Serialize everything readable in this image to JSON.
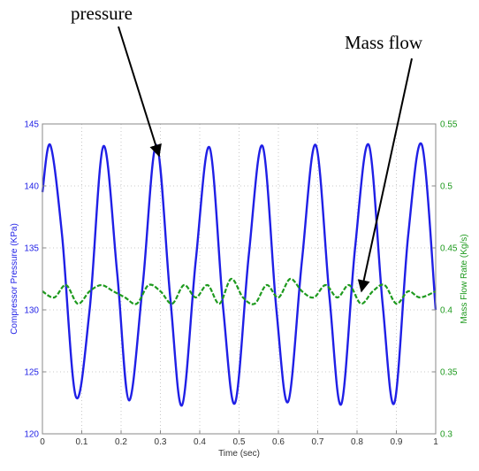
{
  "annotations": {
    "pressure_label": "pressure",
    "massflow_label": "Mass flow"
  },
  "chart_data": {
    "type": "line",
    "xlabel": "Time (sec)",
    "ylabel_left": "Compressor Pressure (KPa)",
    "ylabel_right": "Mass Flow Rate (Kg/s)",
    "xlim": [
      0,
      1
    ],
    "ylim_left": [
      120,
      145
    ],
    "ylim_right": [
      0.3,
      0.55
    ],
    "xticks": [
      "0",
      "0.1",
      "0.2",
      "0.3",
      "0.4",
      "0.5",
      "0.6",
      "0.7",
      "0.8",
      "0.9",
      "1"
    ],
    "yticks_left": [
      "120",
      "125",
      "130",
      "135",
      "140",
      "145"
    ],
    "yticks_right": [
      "0.3",
      "0.35",
      "0.4",
      "0.45",
      "0.5",
      "0.55"
    ],
    "grid": true,
    "colors": {
      "pressure": "#1f1fe6",
      "massflow": "#1e9a1e"
    },
    "series": [
      {
        "axis": "left",
        "style": "solid",
        "x": [
          0,
          0.02,
          0.05,
          0.085,
          0.12,
          0.155,
          0.19,
          0.22,
          0.255,
          0.29,
          0.325,
          0.355,
          0.39,
          0.425,
          0.46,
          0.49,
          0.525,
          0.56,
          0.595,
          0.625,
          0.66,
          0.695,
          0.73,
          0.76,
          0.795,
          0.83,
          0.865,
          0.895,
          0.93,
          0.965,
          1.0
        ],
        "y": [
          139.5,
          143.3,
          136.0,
          123.0,
          130.0,
          143.2,
          133.0,
          122.7,
          132.0,
          143.3,
          131.0,
          122.3,
          134.0,
          143.1,
          130.0,
          122.5,
          134.5,
          143.2,
          130.0,
          122.6,
          134.0,
          143.3,
          131.0,
          122.4,
          135.0,
          143.3,
          130.5,
          122.5,
          136.0,
          143.3,
          130.0
        ]
      },
      {
        "axis": "right",
        "style": "dashed",
        "x": [
          0,
          0.03,
          0.06,
          0.09,
          0.12,
          0.15,
          0.18,
          0.21,
          0.24,
          0.27,
          0.3,
          0.33,
          0.36,
          0.39,
          0.42,
          0.45,
          0.48,
          0.51,
          0.54,
          0.57,
          0.6,
          0.63,
          0.66,
          0.69,
          0.72,
          0.75,
          0.78,
          0.81,
          0.84,
          0.87,
          0.9,
          0.93,
          0.96,
          1.0
        ],
        "y": [
          0.415,
          0.41,
          0.42,
          0.405,
          0.415,
          0.42,
          0.415,
          0.41,
          0.405,
          0.42,
          0.415,
          0.405,
          0.42,
          0.41,
          0.42,
          0.405,
          0.425,
          0.41,
          0.405,
          0.42,
          0.41,
          0.425,
          0.415,
          0.41,
          0.42,
          0.41,
          0.42,
          0.405,
          0.415,
          0.42,
          0.405,
          0.415,
          0.41,
          0.415
        ]
      }
    ]
  }
}
